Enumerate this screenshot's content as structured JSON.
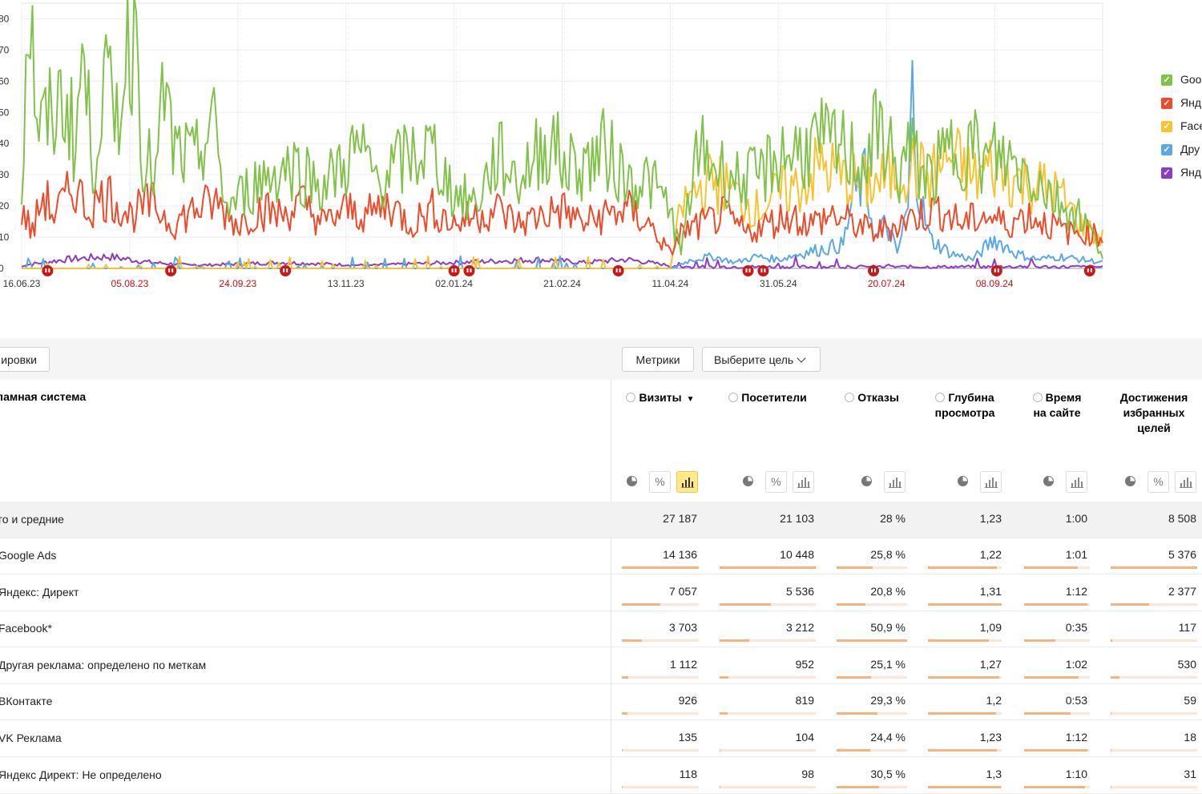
{
  "chart_data": {
    "type": "line",
    "y_ticks": [
      "80",
      "70",
      "60",
      "50",
      "40",
      "30",
      "20",
      "10",
      "0"
    ],
    "y_range": [
      0,
      85
    ],
    "x_ticks": [
      {
        "label": "16.06.23",
        "holiday": false
      },
      {
        "label": "05.08.23",
        "holiday": true
      },
      {
        "label": "24.09.23",
        "holiday": true
      },
      {
        "label": "13.11.23",
        "holiday": false
      },
      {
        "label": "02.01.24",
        "holiday": false
      },
      {
        "label": "21.02.24",
        "holiday": false
      },
      {
        "label": "11.04.24",
        "holiday": false
      },
      {
        "label": "31.05.24",
        "holiday": false
      },
      {
        "label": "20.07.24",
        "holiday": true
      },
      {
        "label": "08.09.24",
        "holiday": true
      }
    ],
    "x_range_days": [
      0,
      500
    ],
    "holiday_marker_days": [
      12,
      69,
      122,
      200,
      207,
      276,
      336,
      343,
      394,
      451,
      494
    ],
    "series": [
      {
        "name": "Goo",
        "color": "#82c24a",
        "peaks": [
          [
            0,
            25
          ],
          [
            3,
            90
          ],
          [
            8,
            45
          ],
          [
            15,
            52
          ],
          [
            20,
            58
          ],
          [
            25,
            42
          ],
          [
            28,
            72
          ],
          [
            33,
            35
          ],
          [
            38,
            65
          ],
          [
            43,
            48
          ],
          [
            50,
            78
          ],
          [
            53,
            84
          ],
          [
            56,
            40
          ],
          [
            62,
            30
          ],
          [
            66,
            60
          ],
          [
            70,
            40
          ],
          [
            80,
            35
          ],
          [
            88,
            50
          ],
          [
            95,
            20
          ],
          [
            110,
            30
          ],
          [
            125,
            35
          ],
          [
            140,
            28
          ],
          [
            155,
            40
          ],
          [
            165,
            30
          ],
          [
            180,
            38
          ],
          [
            190,
            40
          ],
          [
            200,
            25
          ],
          [
            210,
            22
          ],
          [
            220,
            38
          ],
          [
            230,
            30
          ],
          [
            240,
            40
          ],
          [
            245,
            45
          ],
          [
            250,
            35
          ],
          [
            260,
            35
          ],
          [
            270,
            40
          ],
          [
            280,
            30
          ],
          [
            290,
            30
          ],
          [
            300,
            20
          ],
          [
            305,
            5
          ],
          [
            310,
            30
          ],
          [
            315,
            40
          ],
          [
            320,
            35
          ],
          [
            330,
            30
          ],
          [
            340,
            30
          ],
          [
            350,
            38
          ],
          [
            360,
            40
          ],
          [
            370,
            42
          ],
          [
            380,
            40
          ],
          [
            390,
            35
          ],
          [
            395,
            45
          ],
          [
            400,
            45
          ],
          [
            405,
            30
          ],
          [
            410,
            40
          ],
          [
            420,
            30
          ],
          [
            430,
            40
          ],
          [
            440,
            42
          ],
          [
            445,
            35
          ],
          [
            450,
            38
          ],
          [
            460,
            35
          ],
          [
            470,
            30
          ],
          [
            480,
            22
          ],
          [
            490,
            18
          ],
          [
            500,
            5
          ]
        ]
      },
      {
        "name": "Янд",
        "color": "#ef4a29",
        "peaks": [
          [
            0,
            20
          ],
          [
            5,
            12
          ],
          [
            10,
            25
          ],
          [
            15,
            18
          ],
          [
            25,
            28
          ],
          [
            30,
            20
          ],
          [
            40,
            25
          ],
          [
            50,
            18
          ],
          [
            60,
            22
          ],
          [
            70,
            15
          ],
          [
            80,
            20
          ],
          [
            90,
            22
          ],
          [
            100,
            15
          ],
          [
            110,
            20
          ],
          [
            120,
            18
          ],
          [
            130,
            22
          ],
          [
            140,
            15
          ],
          [
            150,
            20
          ],
          [
            160,
            18
          ],
          [
            170,
            22
          ],
          [
            180,
            15
          ],
          [
            190,
            20
          ],
          [
            200,
            15
          ],
          [
            210,
            18
          ],
          [
            220,
            20
          ],
          [
            230,
            15
          ],
          [
            240,
            18
          ],
          [
            250,
            20
          ],
          [
            260,
            15
          ],
          [
            270,
            18
          ],
          [
            280,
            20
          ],
          [
            290,
            15
          ],
          [
            300,
            5
          ],
          [
            305,
            12
          ],
          [
            315,
            15
          ],
          [
            325,
            18
          ],
          [
            335,
            12
          ],
          [
            345,
            15
          ],
          [
            355,
            18
          ],
          [
            365,
            15
          ],
          [
            375,
            18
          ],
          [
            385,
            15
          ],
          [
            395,
            12
          ],
          [
            405,
            15
          ],
          [
            415,
            18
          ],
          [
            425,
            20
          ],
          [
            435,
            15
          ],
          [
            445,
            18
          ],
          [
            455,
            15
          ],
          [
            465,
            18
          ],
          [
            475,
            15
          ],
          [
            485,
            12
          ],
          [
            495,
            12
          ],
          [
            500,
            10
          ]
        ]
      },
      {
        "name": "Face",
        "color": "#f7c431",
        "peaks": [
          [
            0,
            0
          ],
          [
            300,
            0
          ],
          [
            305,
            20
          ],
          [
            310,
            25
          ],
          [
            320,
            30
          ],
          [
            330,
            25
          ],
          [
            340,
            20
          ],
          [
            350,
            25
          ],
          [
            360,
            28
          ],
          [
            370,
            35
          ],
          [
            380,
            30
          ],
          [
            390,
            28
          ],
          [
            400,
            30
          ],
          [
            410,
            35
          ],
          [
            420,
            30
          ],
          [
            430,
            38
          ],
          [
            440,
            30
          ],
          [
            450,
            35
          ],
          [
            460,
            30
          ],
          [
            470,
            28
          ],
          [
            480,
            25
          ],
          [
            490,
            15
          ],
          [
            500,
            10
          ]
        ]
      },
      {
        "name": "Дру",
        "color": "#5aa9e6",
        "peaks": [
          [
            0,
            0
          ],
          [
            300,
            0
          ],
          [
            310,
            3
          ],
          [
            320,
            4
          ],
          [
            330,
            2
          ],
          [
            340,
            4
          ],
          [
            350,
            3
          ],
          [
            360,
            5
          ],
          [
            380,
            8
          ],
          [
            385,
            25
          ],
          [
            390,
            30
          ],
          [
            395,
            10
          ],
          [
            400,
            15
          ],
          [
            405,
            5
          ],
          [
            410,
            20
          ],
          [
            412,
            60
          ],
          [
            415,
            25
          ],
          [
            420,
            10
          ],
          [
            430,
            5
          ],
          [
            440,
            3
          ],
          [
            450,
            10
          ],
          [
            460,
            5
          ],
          [
            470,
            3
          ],
          [
            480,
            4
          ],
          [
            490,
            3
          ],
          [
            500,
            2
          ]
        ]
      },
      {
        "name": "Янд",
        "color": "#8e3bc2",
        "peaks": [
          [
            0,
            1
          ],
          [
            20,
            3
          ],
          [
            40,
            4
          ],
          [
            60,
            2
          ],
          [
            80,
            1
          ],
          [
            120,
            2
          ],
          [
            160,
            1
          ],
          [
            200,
            2
          ],
          [
            240,
            3
          ],
          [
            260,
            2
          ],
          [
            280,
            3
          ],
          [
            300,
            1
          ],
          [
            340,
            1
          ],
          [
            400,
            1
          ],
          [
            450,
            1
          ],
          [
            500,
            1
          ]
        ]
      }
    ]
  },
  "toolbar": {
    "grouping_label": "ировки",
    "metrics_label": "Метрики",
    "goal_label": "Выберите цель"
  },
  "table": {
    "dimension_header": "кламная система",
    "columns": [
      {
        "title_lines": [
          "Визиты"
        ],
        "sorted": true,
        "sort_glyph": "▼",
        "has_help": true,
        "controls": [
          "pie",
          "percent",
          "bars"
        ],
        "active": "bars"
      },
      {
        "title_lines": [
          "Посетители"
        ],
        "sorted": false,
        "has_help": true,
        "controls": [
          "pie",
          "percent",
          "bars"
        ],
        "active": ""
      },
      {
        "title_lines": [
          "Отказы"
        ],
        "sorted": false,
        "has_help": true,
        "controls": [
          "pie",
          "bars"
        ],
        "active": ""
      },
      {
        "title_lines": [
          "Глубина",
          "просмотра"
        ],
        "sorted": false,
        "has_help": true,
        "controls": [
          "pie",
          "bars"
        ],
        "active": ""
      },
      {
        "title_lines": [
          "Время",
          "на сайте"
        ],
        "sorted": false,
        "has_help": true,
        "controls": [
          "pie",
          "bars"
        ],
        "active": ""
      },
      {
        "title_lines": [
          "Достижения",
          "избранных",
          "целей"
        ],
        "sorted": false,
        "has_help": false,
        "controls": [
          "pie",
          "percent",
          "bars"
        ],
        "active": ""
      }
    ],
    "total": {
      "label": "го и средние",
      "values": [
        "27 187",
        "21 103",
        "28 %",
        "1,23",
        "1:00",
        "8 508"
      ]
    },
    "rows": [
      {
        "label": "Google Ads",
        "values": [
          "14 136",
          "10 448",
          "25,8 %",
          "1,22",
          "1:01",
          "5 376"
        ],
        "bar_fractions": [
          1,
          1,
          0.51,
          0.93,
          0.82,
          1
        ]
      },
      {
        "label": "Яндекс: Директ",
        "values": [
          "7 057",
          "5 536",
          "20,8 %",
          "1,31",
          "1:12",
          "2 377"
        ],
        "bar_fractions": [
          0.5,
          0.53,
          0.41,
          1,
          0.96,
          0.44
        ]
      },
      {
        "label": "Facebook*",
        "values": [
          "3 703",
          "3 212",
          "50,9 %",
          "1,09",
          "0:35",
          "117"
        ],
        "bar_fractions": [
          0.26,
          0.31,
          1,
          0.83,
          0.47,
          0.02
        ]
      },
      {
        "label": "Другая реклама: определено по меткам",
        "values": [
          "1 112",
          "952",
          "25,1 %",
          "1,27",
          "1:02",
          "530"
        ],
        "bar_fractions": [
          0.08,
          0.09,
          0.49,
          0.97,
          0.83,
          0.1
        ]
      },
      {
        "label": "ВКонтакте",
        "values": [
          "926",
          "819",
          "29,3 %",
          "1,2",
          "0:53",
          "59"
        ],
        "bar_fractions": [
          0.07,
          0.08,
          0.58,
          0.92,
          0.71,
          0.01
        ]
      },
      {
        "label": "VK Реклама",
        "values": [
          "135",
          "104",
          "24,4 %",
          "1,23",
          "1:12",
          "18"
        ],
        "bar_fractions": [
          0.01,
          0.01,
          0.48,
          0.94,
          0.96,
          0.003
        ]
      },
      {
        "label": "Яндекс Директ: Не определено",
        "values": [
          "118",
          "98",
          "30,5 %",
          "1,3",
          "1:10",
          "31"
        ],
        "bar_fractions": [
          0.01,
          0.01,
          0.6,
          0.99,
          0.93,
          0.006
        ]
      }
    ]
  }
}
